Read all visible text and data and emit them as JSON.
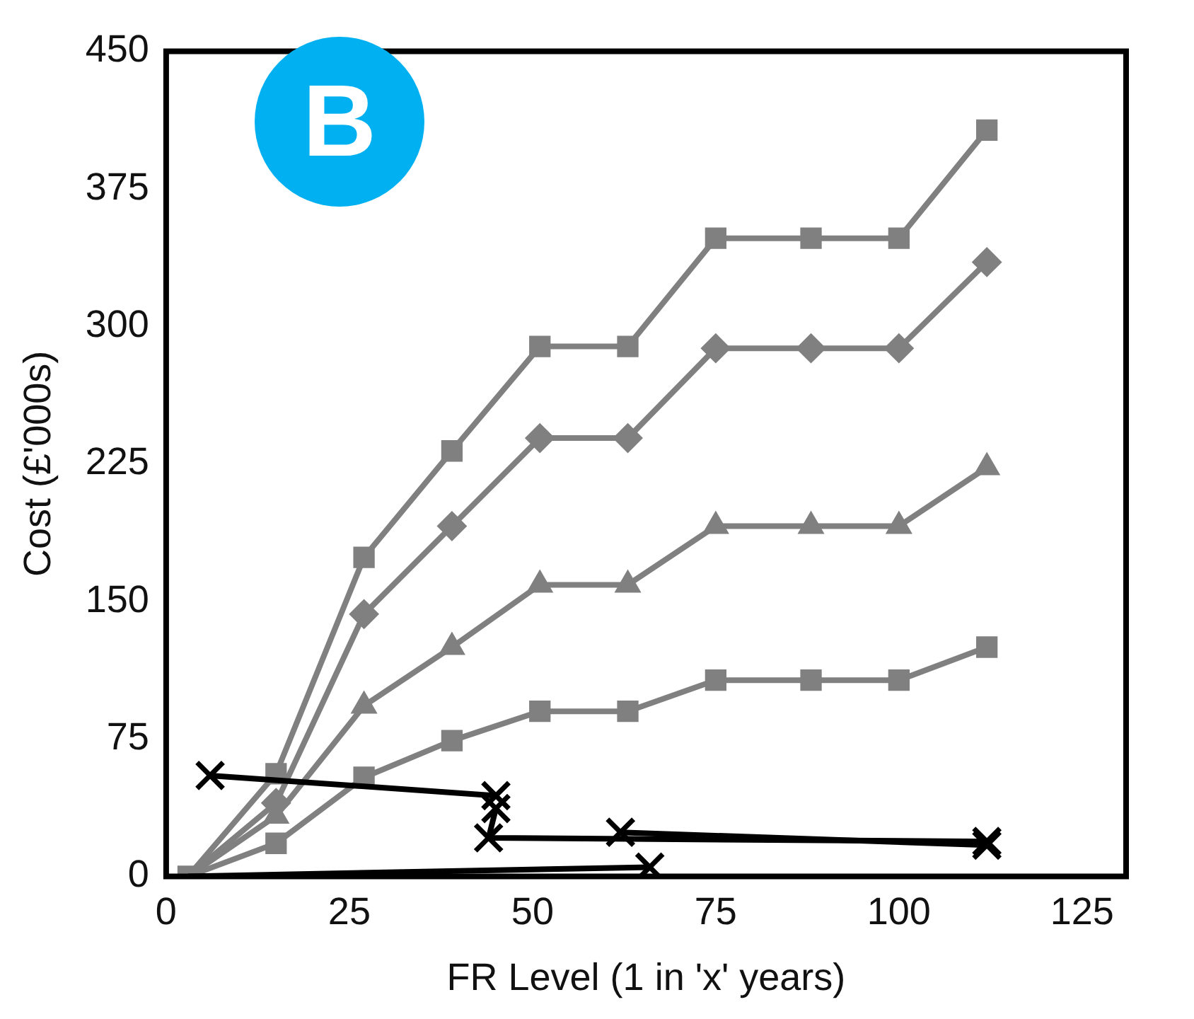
{
  "chart_data": {
    "type": "line",
    "xlabel": "FR Level (1 in 'x' years)",
    "ylabel": "Cost (£'000s)",
    "annotations": [
      "B"
    ],
    "xlim": [
      0,
      131
    ],
    "xticks": [
      0,
      25,
      50,
      75,
      100,
      125
    ],
    "ylim": [
      0,
      450
    ],
    "yticks": [
      0,
      75,
      150,
      225,
      300,
      375,
      450
    ],
    "grid": false,
    "legend": false,
    "line_style": "solid",
    "series": [
      {
        "color": "#808080",
        "marker": "square",
        "x": [
          3,
          15,
          27,
          39,
          51,
          63,
          75,
          88,
          100,
          112
        ],
        "values": [
          0,
          56,
          174,
          232,
          289,
          289,
          348,
          348,
          348,
          407
        ]
      },
      {
        "color": "#808080",
        "marker": "diamond",
        "x": [
          3,
          15,
          27,
          39,
          51,
          63,
          75,
          88,
          100,
          112
        ],
        "values": [
          0,
          40,
          143,
          191,
          239,
          239,
          288,
          288,
          288,
          335
        ]
      },
      {
        "color": "#808080",
        "marker": "triangle",
        "x": [
          3,
          15,
          27,
          39,
          51,
          63,
          75,
          88,
          100,
          112
        ],
        "values": [
          0,
          33,
          93,
          125,
          159,
          159,
          191,
          191,
          191,
          223
        ]
      },
      {
        "color": "#808080",
        "marker": "square",
        "x": [
          3,
          15,
          27,
          39,
          51,
          63,
          75,
          88,
          100,
          112
        ],
        "values": [
          0,
          18,
          54,
          74,
          90,
          90,
          107,
          107,
          107,
          125
        ]
      },
      {
        "color": "#000000",
        "marker": "cross",
        "x": [
          6,
          45
        ],
        "values": [
          55,
          44
        ]
      },
      {
        "color": "#000000",
        "marker": "cross",
        "x": [
          45,
          44,
          112
        ],
        "values": [
          37,
          21,
          19
        ]
      },
      {
        "color": "#000000",
        "marker": "cross",
        "x": [
          62,
          112
        ],
        "values": [
          24,
          17
        ]
      },
      {
        "color": "#000000",
        "marker": "cross",
        "x": [
          3,
          66
        ],
        "values": [
          0,
          5
        ]
      }
    ]
  }
}
